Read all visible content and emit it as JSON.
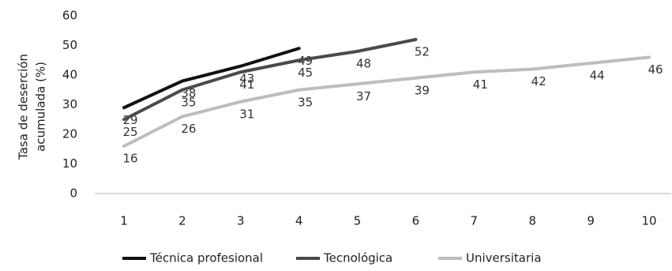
{
  "chart_data": {
    "type": "line",
    "ylabel": [
      "Tasa de deserción",
      "acumulada (%)"
    ],
    "categories": [
      1,
      2,
      3,
      4,
      5,
      6,
      7,
      8,
      9,
      10
    ],
    "series": [
      {
        "name": "Técnica profesional",
        "color": "#111111",
        "values": [
          29,
          38,
          43,
          49,
          null,
          null,
          null,
          null,
          null,
          null
        ]
      },
      {
        "name": "Tecnológica",
        "color": "#4a4a4a",
        "values": [
          25,
          35,
          41,
          45,
          48,
          52,
          null,
          null,
          null,
          null
        ]
      },
      {
        "name": "Universitaria",
        "color": "#bdbdbd",
        "values": [
          16,
          26,
          31,
          35,
          37,
          39,
          41,
          42,
          44,
          46
        ]
      }
    ],
    "ylim": [
      0,
      60
    ],
    "yticks": [
      0,
      10,
      20,
      30,
      40,
      50,
      60
    ],
    "legend": "bottom",
    "grid": false
  }
}
